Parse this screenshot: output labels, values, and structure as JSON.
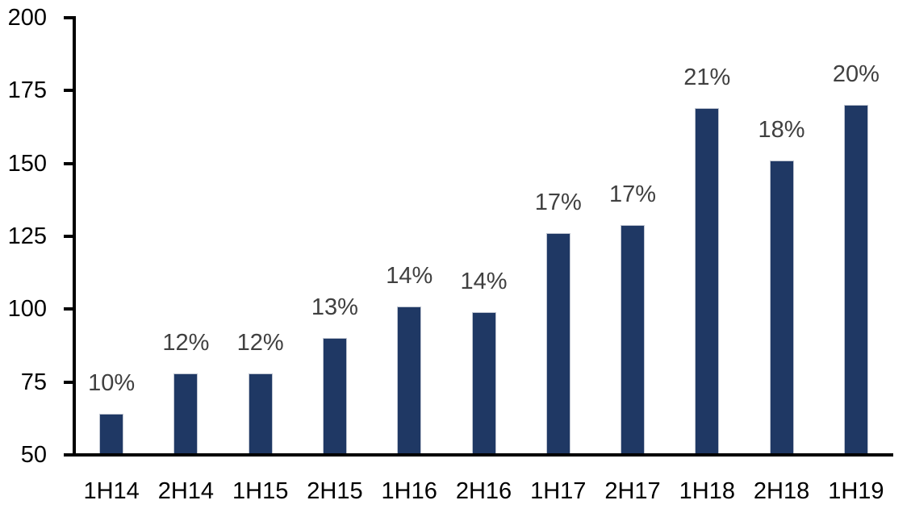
{
  "chart_data": {
    "type": "bar",
    "title": "",
    "xlabel": "",
    "ylabel": "",
    "categories": [
      "1H14",
      "2H14",
      "1H15",
      "2H15",
      "1H16",
      "2H16",
      "1H17",
      "2H17",
      "1H18",
      "2H18",
      "1H19"
    ],
    "values": [
      64,
      78,
      78,
      90,
      101,
      99,
      126,
      129,
      169,
      151,
      170
    ],
    "bar_labels": [
      "10%",
      "12%",
      "12%",
      "13%",
      "14%",
      "14%",
      "17%",
      "17%",
      "21%",
      "18%",
      "20%"
    ],
    "ylim": [
      50,
      200
    ],
    "yticks": [
      50,
      75,
      100,
      125,
      150,
      175,
      200
    ],
    "grid": false,
    "legend_position": "none",
    "colors": {
      "bar_fill": "#1f3864",
      "bar_border": "#bfc5d1",
      "data_label": "#404040",
      "axis_text": "#000000",
      "axis_line": "#000000",
      "background": "#ffffff"
    }
  }
}
